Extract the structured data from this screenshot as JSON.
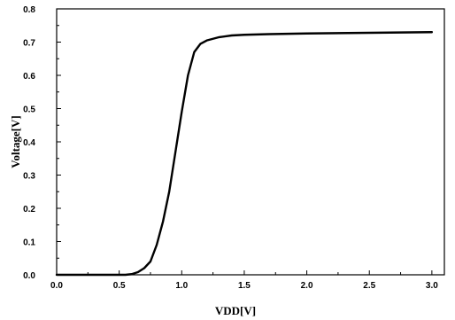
{
  "chart_data": {
    "type": "line",
    "xlabel": "VDD[V]",
    "ylabel": "Voltage[V]",
    "xlim": [
      0.0,
      3.1
    ],
    "ylim": [
      0.0,
      0.8
    ],
    "x_ticks": [
      "0.0",
      "0.5",
      "1.0",
      "1.5",
      "2.0",
      "2.5",
      "3.0"
    ],
    "y_ticks": [
      "0.0",
      "0.1",
      "0.2",
      "0.3",
      "0.4",
      "0.5",
      "0.6",
      "0.7",
      "0.8"
    ],
    "grid": false,
    "legend": "none",
    "series": [
      {
        "color": "#000000",
        "x": [
          0.0,
          0.55,
          0.6,
          0.65,
          0.7,
          0.75,
          0.8,
          0.85,
          0.9,
          0.95,
          1.0,
          1.05,
          1.1,
          1.15,
          1.2,
          1.3,
          1.4,
          1.5,
          1.7,
          2.0,
          2.5,
          3.0
        ],
        "y": [
          0.0,
          0.0,
          0.002,
          0.008,
          0.02,
          0.04,
          0.09,
          0.16,
          0.25,
          0.37,
          0.49,
          0.6,
          0.67,
          0.695,
          0.705,
          0.715,
          0.72,
          0.722,
          0.724,
          0.726,
          0.728,
          0.73
        ]
      }
    ]
  }
}
